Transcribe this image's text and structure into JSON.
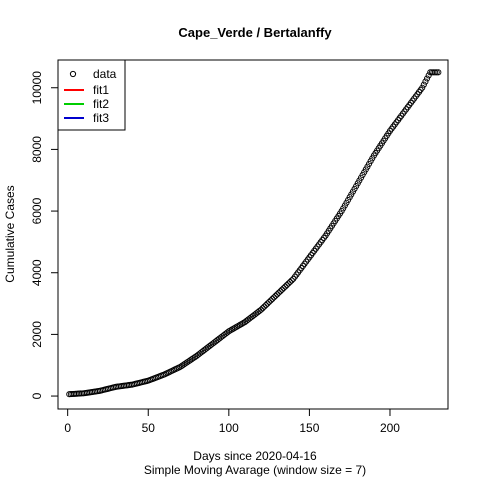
{
  "chart_data": {
    "type": "scatter",
    "title": "Cape_Verde / Bertalanffy",
    "xlabel": "Days since 2020-04-16",
    "xlabel_sub": "Simple Moving Avarage (window size = 7)",
    "ylabel": "Cumulative Cases",
    "xlim": [
      -6,
      236
    ],
    "ylim": [
      -420,
      10900
    ],
    "x_ticks": [
      0,
      50,
      100,
      150,
      200
    ],
    "y_ticks": [
      0,
      2000,
      4000,
      6000,
      8000,
      10000
    ],
    "grid": false,
    "legend_position": "top-left",
    "legend": [
      {
        "label": "data",
        "kind": "point",
        "color": "#000000"
      },
      {
        "label": "fit1",
        "kind": "line",
        "color": "#ff0000"
      },
      {
        "label": "fit2",
        "kind": "line",
        "color": "#00cd00"
      },
      {
        "label": "fit3",
        "kind": "line",
        "color": "#0000cd"
      }
    ],
    "series": [
      {
        "name": "data",
        "curve": {
          "x": [
            1,
            10,
            20,
            30,
            40,
            50,
            60,
            70,
            80,
            90,
            100,
            110,
            120,
            130,
            140,
            150,
            160,
            170,
            180,
            190,
            200,
            210,
            220,
            225,
            230
          ],
          "y": [
            60,
            90,
            170,
            300,
            370,
            500,
            700,
            950,
            1300,
            1700,
            2100,
            2400,
            2800,
            3300,
            3800,
            4500,
            5200,
            6000,
            6900,
            7800,
            8600,
            9300,
            10000,
            10500,
            10500
          ]
        },
        "day_first": 1,
        "day_last": 230
      }
    ]
  }
}
